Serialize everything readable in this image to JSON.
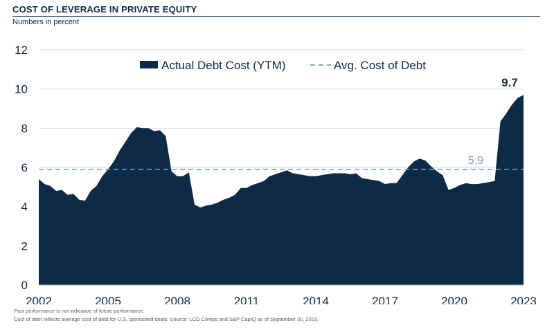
{
  "title": "COST OF LEVERAGE IN PRIVATE EQUITY",
  "subtitle": "Numbers in percent",
  "footnotes": [
    "Past performance is not indicative of future performance.",
    "Cost of debt reflects average cost of debt for U.S. sponsored deals. Source: LCD Comps and S&P CapIQ as of September 30, 2023."
  ],
  "colors": {
    "area": "#0d2a47",
    "avg_line": "#6fa3d0",
    "grid": "#d6d9dc",
    "text": "#0d2a47"
  },
  "chart_data": {
    "type": "area",
    "title": "COST OF LEVERAGE IN PRIVATE EQUITY",
    "ylabel": "Numbers in percent",
    "xlim": [
      2002,
      2023
    ],
    "ylim": [
      0,
      12
    ],
    "yticks": [
      0,
      2,
      4,
      6,
      8,
      10,
      12
    ],
    "xticks": [
      2002,
      2005,
      2008,
      2011,
      2014,
      2017,
      2020,
      2023
    ],
    "grid": true,
    "legend_position": "top-center",
    "series": [
      {
        "name": "Actual Debt Cost (YTM)",
        "kind": "area",
        "x": [
          2002.0,
          2002.25,
          2002.5,
          2002.75,
          2003.0,
          2003.25,
          2003.5,
          2003.75,
          2004.0,
          2004.25,
          2004.5,
          2004.75,
          2005.0,
          2005.25,
          2005.5,
          2005.75,
          2006.0,
          2006.25,
          2006.5,
          2006.75,
          2007.0,
          2007.25,
          2007.5,
          2007.75,
          2008.0,
          2008.25,
          2008.5,
          2008.75,
          2009.0,
          2009.25,
          2009.5,
          2009.75,
          2010.0,
          2010.25,
          2010.5,
          2010.75,
          2011.0,
          2011.25,
          2011.5,
          2011.75,
          2012.0,
          2012.25,
          2012.5,
          2012.75,
          2013.0,
          2013.25,
          2013.5,
          2013.75,
          2014.0,
          2014.25,
          2014.5,
          2014.75,
          2015.0,
          2015.25,
          2015.5,
          2015.75,
          2016.0,
          2016.25,
          2016.5,
          2016.75,
          2017.0,
          2017.25,
          2017.5,
          2017.75,
          2018.0,
          2018.25,
          2018.5,
          2018.75,
          2019.0,
          2019.25,
          2019.5,
          2019.75,
          2020.0,
          2020.25,
          2020.5,
          2020.75,
          2021.0,
          2021.25,
          2021.5,
          2021.75,
          2022.0,
          2022.25,
          2022.5,
          2022.75,
          2023.0
        ],
        "values": [
          5.4,
          5.15,
          5.05,
          4.8,
          4.85,
          4.6,
          4.65,
          4.35,
          4.3,
          4.8,
          5.05,
          5.55,
          5.9,
          6.3,
          6.85,
          7.3,
          7.75,
          8.05,
          8.0,
          8.0,
          7.85,
          7.9,
          7.6,
          5.8,
          5.55,
          5.55,
          5.75,
          4.1,
          3.95,
          4.05,
          4.1,
          4.2,
          4.35,
          4.45,
          4.6,
          4.95,
          4.95,
          5.1,
          5.2,
          5.3,
          5.55,
          5.65,
          5.75,
          5.85,
          5.7,
          5.65,
          5.6,
          5.55,
          5.55,
          5.6,
          5.65,
          5.7,
          5.7,
          5.7,
          5.65,
          5.7,
          5.45,
          5.4,
          5.35,
          5.3,
          5.15,
          5.2,
          5.2,
          5.6,
          6.0,
          6.3,
          6.45,
          6.35,
          6.05,
          5.8,
          5.6,
          4.85,
          4.95,
          5.1,
          5.2,
          5.15,
          5.15,
          5.2,
          5.25,
          5.3,
          8.35,
          8.75,
          9.2,
          9.55,
          9.7
        ]
      },
      {
        "name": "Avg. Cost of Debt",
        "kind": "dashed-line",
        "value": 5.9
      }
    ],
    "annotations": [
      {
        "text": "9.7",
        "x": 2023.0,
        "y": 9.7
      },
      {
        "text": "5.9",
        "x": 2020.75,
        "y": 5.9
      }
    ]
  }
}
